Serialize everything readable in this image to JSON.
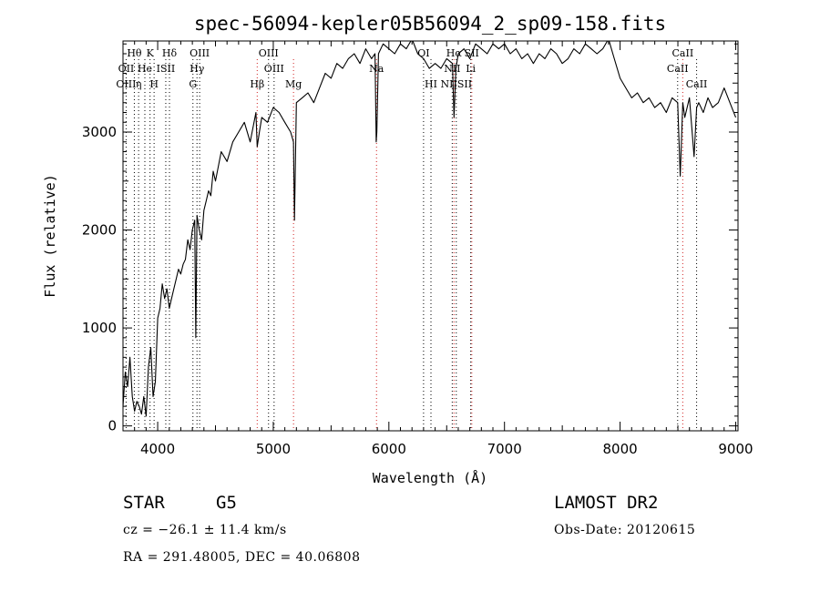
{
  "chart_data": {
    "type": "line",
    "title": "spec-56094-kepler05B56094_2_sp09-158.fits",
    "xlabel": "Wavelength (Å)",
    "ylabel": "Flux (relative)",
    "xlim": [
      3700,
      9020
    ],
    "ylim": [
      -50,
      3930
    ],
    "xticks": [
      4000,
      5000,
      6000,
      7000,
      8000,
      9000
    ],
    "yticks": [
      0,
      1000,
      2000,
      3000
    ],
    "grid": false,
    "series": [
      {
        "x": [
          3700,
          3720,
          3740,
          3760,
          3780,
          3800,
          3820,
          3840,
          3860,
          3880,
          3900,
          3920,
          3940,
          3960,
          3980,
          4000,
          4020,
          4040,
          4060,
          4080,
          4100,
          4120,
          4140,
          4160,
          4180,
          4200,
          4220,
          4240,
          4260,
          4280,
          4300,
          4320,
          4330,
          4340,
          4360,
          4380,
          4400,
          4420,
          4440,
          4460,
          4480,
          4500,
          4550,
          4600,
          4650,
          4700,
          4750,
          4800,
          4850,
          4861,
          4880,
          4900,
          4950,
          5000,
          5050,
          5100,
          5150,
          5175,
          5183,
          5200,
          5250,
          5300,
          5350,
          5400,
          5450,
          5500,
          5550,
          5600,
          5650,
          5700,
          5750,
          5800,
          5850,
          5880,
          5890,
          5896,
          5910,
          5950,
          6000,
          6050,
          6100,
          6150,
          6200,
          6250,
          6300,
          6350,
          6400,
          6450,
          6500,
          6550,
          6563,
          6580,
          6600,
          6650,
          6700,
          6750,
          6800,
          6850,
          6900,
          6950,
          7000,
          7050,
          7100,
          7150,
          7200,
          7250,
          7300,
          7350,
          7400,
          7450,
          7500,
          7550,
          7600,
          7650,
          7700,
          7750,
          7800,
          7850,
          7900,
          7950,
          8000,
          8050,
          8100,
          8150,
          8200,
          8250,
          8300,
          8350,
          8400,
          8450,
          8498,
          8520,
          8542,
          8560,
          8600,
          8640,
          8662,
          8680,
          8720,
          8760,
          8800,
          8850,
          8900,
          8950,
          9000
        ],
        "y": [
          200,
          550,
          400,
          700,
          300,
          150,
          250,
          200,
          120,
          300,
          100,
          600,
          800,
          300,
          450,
          1100,
          1200,
          1450,
          1300,
          1400,
          1200,
          1300,
          1400,
          1500,
          1600,
          1550,
          1650,
          1700,
          1900,
          1800,
          2000,
          2100,
          900,
          2150,
          2000,
          1900,
          2200,
          2300,
          2400,
          2350,
          2600,
          2500,
          2800,
          2700,
          2900,
          3000,
          3100,
          2900,
          3200,
          2850,
          3000,
          3150,
          3100,
          3250,
          3200,
          3100,
          3000,
          2900,
          2100,
          3300,
          3350,
          3400,
          3300,
          3450,
          3600,
          3550,
          3700,
          3650,
          3750,
          3800,
          3700,
          3850,
          3750,
          3800,
          2900,
          3000,
          3800,
          3900,
          3850,
          3800,
          3900,
          3850,
          3950,
          3800,
          3750,
          3650,
          3700,
          3650,
          3750,
          3700,
          3150,
          3650,
          3800,
          3850,
          3750,
          3900,
          3850,
          3800,
          3900,
          3850,
          3900,
          3800,
          3850,
          3750,
          3800,
          3700,
          3800,
          3750,
          3850,
          3800,
          3700,
          3750,
          3850,
          3800,
          3900,
          3850,
          3800,
          3850,
          3950,
          3750,
          3550,
          3450,
          3350,
          3400,
          3300,
          3350,
          3250,
          3300,
          3200,
          3350,
          3300,
          2550,
          3300,
          3150,
          3350,
          2750,
          3250,
          3300,
          3200,
          3350,
          3250,
          3300,
          3450,
          3300,
          3150
        ]
      }
    ],
    "lines_upper": [
      {
        "label": "Hθ",
        "x": 3798
      },
      {
        "label": "K",
        "x": 3934
      },
      {
        "label": "Hδ",
        "x": 4102
      },
      {
        "label": "OIII",
        "x": 4363
      },
      {
        "label": "OIII",
        "x": 4959
      },
      {
        "label": "OI",
        "x": 6300
      },
      {
        "label": "Hα",
        "x": 6563
      },
      {
        "label": "SII",
        "x": 6717
      },
      {
        "label": "CaII",
        "x": 8542
      }
    ],
    "lines_middle": [
      {
        "label": "OII",
        "x": 3727
      },
      {
        "label": "He",
        "x": 3889
      },
      {
        "label": "ISII",
        "x": 4070
      },
      {
        "label": "Hγ",
        "x": 4340
      },
      {
        "label": "OIII",
        "x": 5007
      },
      {
        "label": "Na",
        "x": 5893
      },
      {
        "label": "NII",
        "x": 6548
      },
      {
        "label": "Li",
        "x": 6708
      },
      {
        "label": "CaII",
        "x": 8498
      }
    ],
    "lines_lower": [
      {
        "label": "OIII",
        "x": 3727
      },
      {
        "label": "η",
        "x": 3835
      },
      {
        "label": "H",
        "x": 3969
      },
      {
        "label": "G",
        "x": 4305
      },
      {
        "label": "Hβ",
        "x": 4861
      },
      {
        "label": "Mg",
        "x": 5175
      },
      {
        "label": "HI",
        "x": 6364
      },
      {
        "label": "NIISII",
        "x": 6583
      },
      {
        "label": "CaII",
        "x": 8662
      }
    ],
    "red_lines": [
      4861,
      5175,
      5893,
      6563,
      6717,
      8542
    ]
  },
  "footer": {
    "object_type": "STAR",
    "subclass": "G5",
    "survey": "LAMOST DR2",
    "redshift": "cz = −26.1 ± 11.4 km/s",
    "obs_date": "Obs-Date: 20120615",
    "coords": "RA = 291.48005, DEC =  40.06808"
  }
}
